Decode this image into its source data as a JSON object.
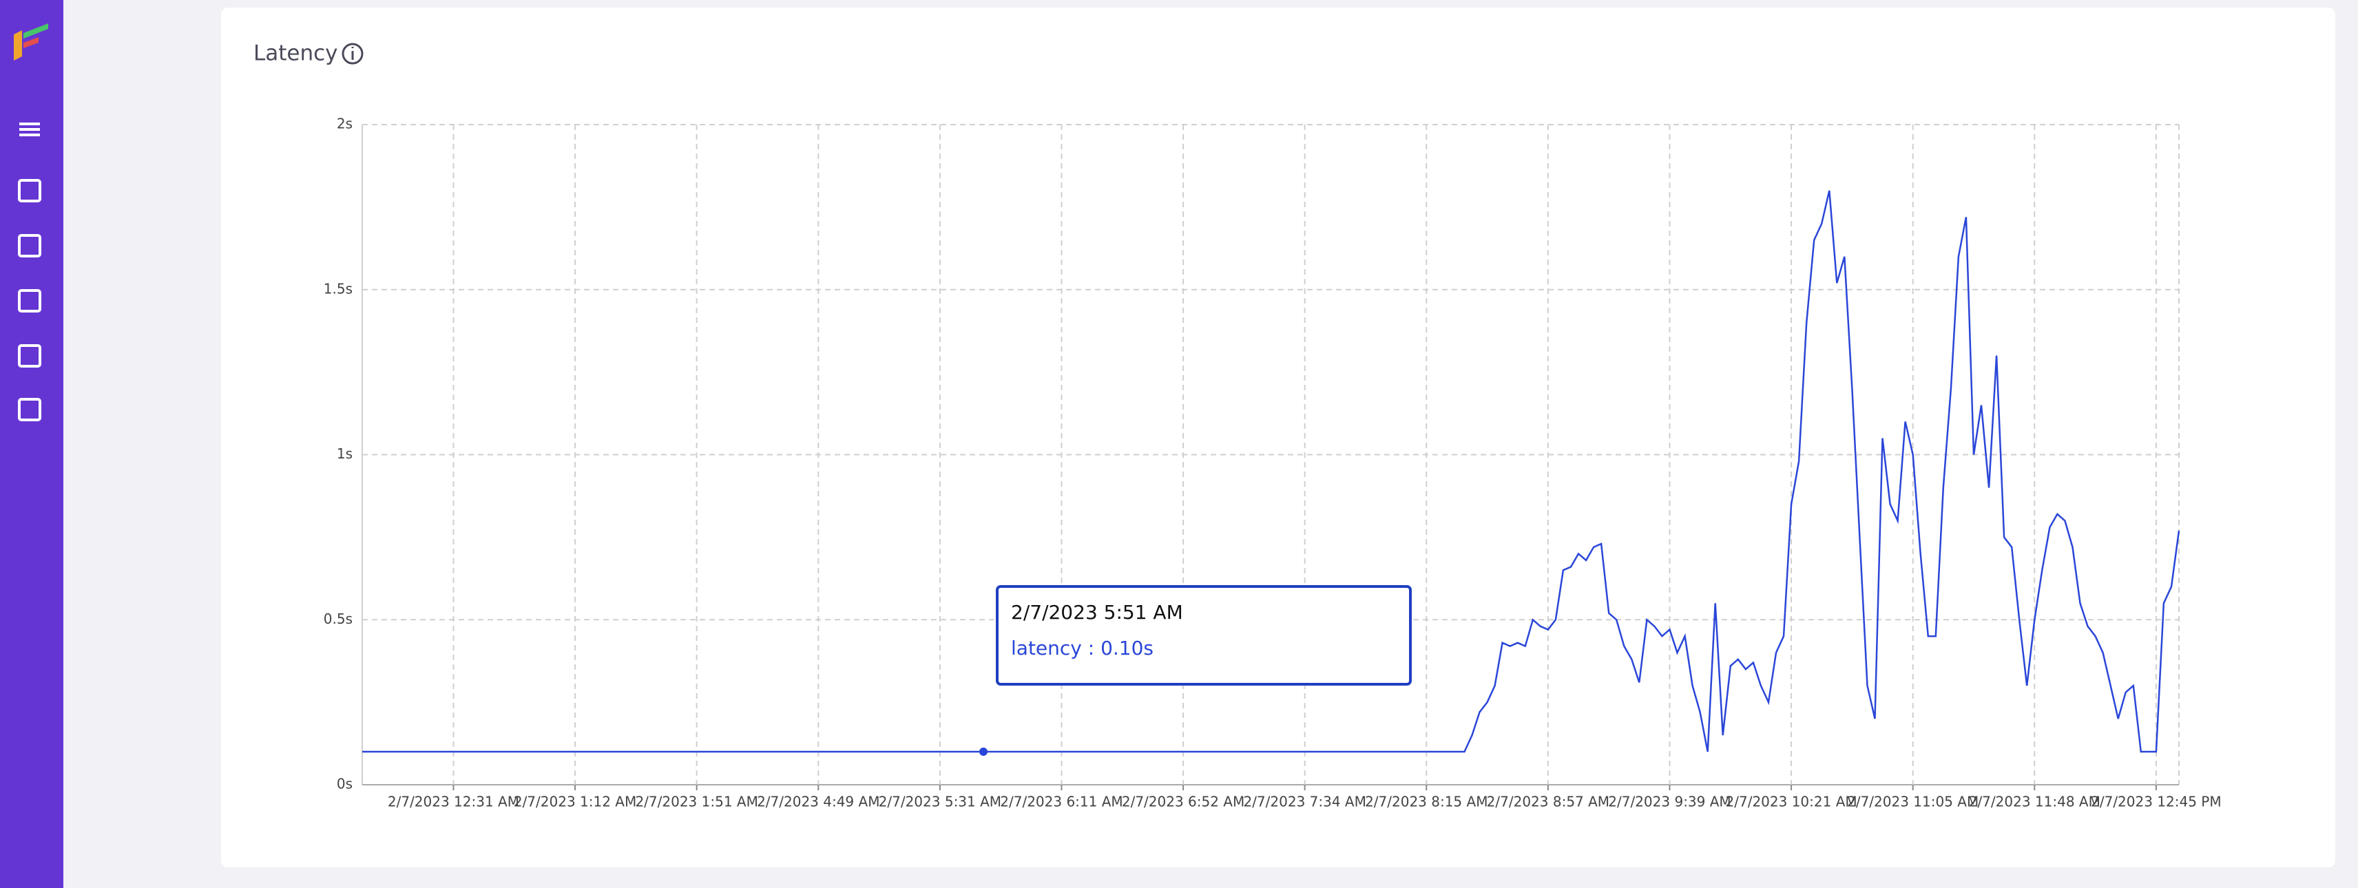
{
  "chart_data": {
    "type": "line",
    "title": "Latency",
    "color": "#2a46d8",
    "grid": true,
    "ylim": [
      0,
      2
    ],
    "yticks": [
      {
        "value": 0,
        "label": "0s"
      },
      {
        "value": 0.5,
        "label": "0.5s"
      },
      {
        "value": 1,
        "label": "1s"
      },
      {
        "value": 1.5,
        "label": "1.5s"
      },
      {
        "value": 2,
        "label": "2s"
      }
    ],
    "categories": [
      null,
      null,
      null,
      null,
      null,
      null,
      null,
      null,
      null,
      null,
      null,
      null,
      "2/7/2023 12:31 AM",
      null,
      null,
      null,
      null,
      null,
      null,
      null,
      null,
      null,
      null,
      null,
      null,
      null,
      null,
      null,
      "2/7/2023 1:12 AM",
      null,
      null,
      null,
      null,
      null,
      null,
      null,
      null,
      null,
      null,
      null,
      null,
      null,
      null,
      null,
      "2/7/2023 1:51 AM",
      null,
      null,
      null,
      null,
      null,
      null,
      null,
      null,
      null,
      null,
      null,
      null,
      null,
      null,
      null,
      "2/7/2023 4:49 AM",
      null,
      null,
      null,
      null,
      null,
      null,
      null,
      null,
      null,
      null,
      null,
      null,
      null,
      null,
      null,
      "2/7/2023 5:31 AM",
      null,
      null,
      null,
      null,
      null,
      null,
      null,
      null,
      null,
      null,
      null,
      null,
      null,
      null,
      null,
      "2/7/2023 6:11 AM",
      null,
      null,
      null,
      null,
      null,
      null,
      null,
      null,
      null,
      null,
      null,
      null,
      null,
      null,
      null,
      "2/7/2023 6:52 AM",
      null,
      null,
      null,
      null,
      null,
      null,
      null,
      null,
      null,
      null,
      null,
      null,
      null,
      null,
      null,
      "2/7/2023 7:34 AM",
      null,
      null,
      null,
      null,
      null,
      null,
      null,
      null,
      null,
      null,
      null,
      null,
      null,
      null,
      null,
      "2/7/2023 8:15 AM",
      null,
      null,
      null,
      null,
      null,
      null,
      null,
      null,
      null,
      null,
      null,
      null,
      null,
      null,
      null,
      "2/7/2023 8:57 AM",
      null,
      null,
      null,
      null,
      null,
      null,
      null,
      null,
      null,
      null,
      null,
      null,
      null,
      null,
      null,
      "2/7/2023 9:39 AM",
      null,
      null,
      null,
      null,
      null,
      null,
      null,
      null,
      null,
      null,
      null,
      null,
      null,
      null,
      null,
      "2/7/2023 10:21 AM",
      null,
      null,
      null,
      null,
      null,
      null,
      null,
      null,
      null,
      null,
      null,
      null,
      null,
      null,
      null,
      "2/7/2023 11:05 AM",
      null,
      null,
      null,
      null,
      null,
      null,
      null,
      null,
      null,
      null,
      null,
      null,
      null,
      null,
      null,
      "2/7/2023 11:48 AM",
      null,
      null,
      null,
      null,
      null,
      null,
      null,
      null,
      null,
      null,
      null,
      null,
      null,
      null,
      null,
      "2/7/2023 12:45 PM",
      null,
      null,
      null
    ],
    "values": [
      0.1,
      0.1,
      0.1,
      0.1,
      0.1,
      0.1,
      0.1,
      0.1,
      0.1,
      0.1,
      0.1,
      0.1,
      0.1,
      0.1,
      0.1,
      0.1,
      0.1,
      0.1,
      0.1,
      0.1,
      0.1,
      0.1,
      0.1,
      0.1,
      0.1,
      0.1,
      0.1,
      0.1,
      0.1,
      0.1,
      0.1,
      0.1,
      0.1,
      0.1,
      0.1,
      0.1,
      0.1,
      0.1,
      0.1,
      0.1,
      0.1,
      0.1,
      0.1,
      0.1,
      0.1,
      0.1,
      0.1,
      0.1,
      0.1,
      0.1,
      0.1,
      0.1,
      0.1,
      0.1,
      0.1,
      0.1,
      0.1,
      0.1,
      0.1,
      0.1,
      0.1,
      0.1,
      0.1,
      0.1,
      0.1,
      0.1,
      0.1,
      0.1,
      0.1,
      0.1,
      0.1,
      0.1,
      0.1,
      0.1,
      0.1,
      0.1,
      0.1,
      0.1,
      0.1,
      0.1,
      0.1,
      0.1,
      0.1,
      0.1,
      0.1,
      0.1,
      0.1,
      0.1,
      0.1,
      0.1,
      0.1,
      0.1,
      0.1,
      0.1,
      0.1,
      0.1,
      0.1,
      0.1,
      0.1,
      0.1,
      0.1,
      0.1,
      0.1,
      0.1,
      0.1,
      0.1,
      0.1,
      0.1,
      0.1,
      0.1,
      0.1,
      0.1,
      0.1,
      0.1,
      0.1,
      0.1,
      0.1,
      0.1,
      0.1,
      0.1,
      0.1,
      0.1,
      0.1,
      0.1,
      0.1,
      0.1,
      0.1,
      0.1,
      0.1,
      0.1,
      0.1,
      0.1,
      0.1,
      0.1,
      0.1,
      0.1,
      0.1,
      0.1,
      0.1,
      0.1,
      0.1,
      0.1,
      0.1,
      0.1,
      0.1,
      0.1,
      0.15,
      0.22,
      0.25,
      0.3,
      0.43,
      0.42,
      0.43,
      0.42,
      0.5,
      0.48,
      0.47,
      0.5,
      0.65,
      0.66,
      0.7,
      0.68,
      0.72,
      0.73,
      0.52,
      0.5,
      0.42,
      0.38,
      0.31,
      0.5,
      0.48,
      0.45,
      0.47,
      0.4,
      0.45,
      0.3,
      0.22,
      0.1,
      0.55,
      0.15,
      0.36,
      0.38,
      0.35,
      0.37,
      0.3,
      0.25,
      0.4,
      0.45,
      0.85,
      0.98,
      1.4,
      1.65,
      1.7,
      1.8,
      1.52,
      1.6,
      1.2,
      0.75,
      0.3,
      0.2,
      1.05,
      0.85,
      0.8,
      1.1,
      1.0,
      0.7,
      0.45,
      0.45,
      0.9,
      1.2,
      1.6,
      1.72,
      1.0,
      1.15,
      0.9,
      1.3,
      0.75,
      0.72,
      0.5,
      0.3,
      0.5,
      0.65,
      0.78,
      0.82,
      0.8,
      0.72,
      0.55,
      0.48,
      0.45,
      0.4,
      0.3,
      0.2,
      0.28,
      0.3,
      0.1,
      0.1,
      0.1,
      0.55,
      0.6,
      0.77
    ],
    "tooltip": {
      "title": "2/7/2023 5:51 AM",
      "text": "latency : 0.10s",
      "value": 0.1
    }
  }
}
